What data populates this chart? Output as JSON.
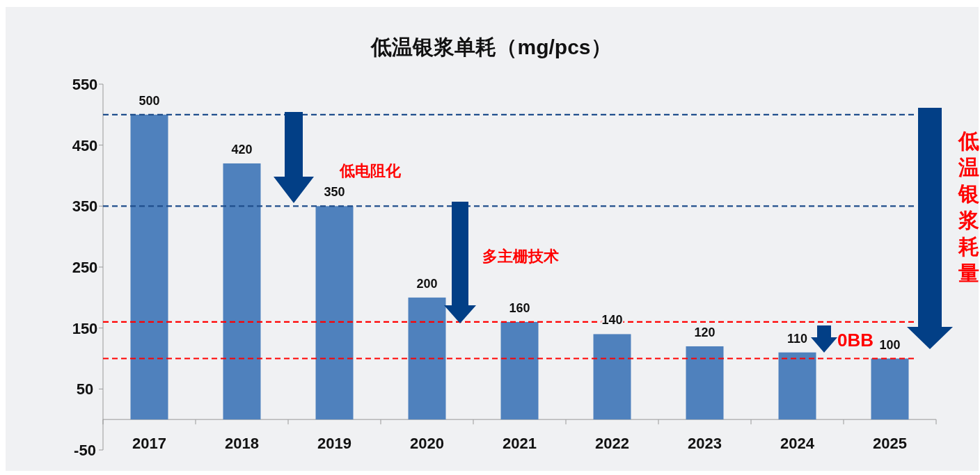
{
  "chart_data": {
    "type": "bar",
    "title": "低温银浆单耗（mg/pcs）",
    "categories": [
      "2017",
      "2018",
      "2019",
      "2020",
      "2021",
      "2022",
      "2023",
      "2024",
      "2025"
    ],
    "values": [
      500,
      420,
      350,
      200,
      160,
      140,
      120,
      110,
      100
    ],
    "color": "#4f81bd",
    "ylim": [
      -50,
      550
    ],
    "yticks": [
      -50,
      50,
      150,
      250,
      350,
      450,
      550
    ],
    "data_labels": true,
    "ref_lines": [
      {
        "axis": "y",
        "value": 500,
        "color": "#1f4e8c",
        "line_style": "dashed"
      },
      {
        "axis": "y",
        "value": 350,
        "color": "#1f4e8c",
        "line_style": "dashed"
      },
      {
        "axis": "y",
        "value": 160,
        "color": "#ff0000",
        "line_style": "dashed"
      },
      {
        "axis": "y",
        "value": 100,
        "color": "#ff0000",
        "line_style": "dashed"
      }
    ],
    "annotations": [
      "低电阻化",
      "多主栅技术",
      "0BB",
      "低温银浆耗量"
    ]
  }
}
